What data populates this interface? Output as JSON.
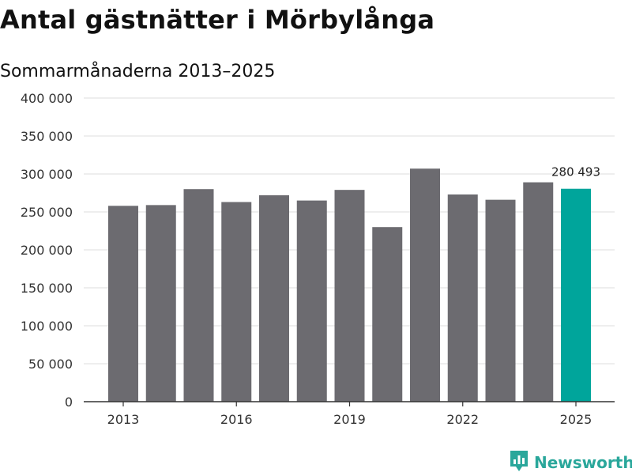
{
  "header": {
    "title": "Antal gästnätter i Mörbylånga",
    "subtitle": "Sommarmånaderna 2013–2025"
  },
  "brand": {
    "name": "Newsworthy",
    "color": "#2aa79b",
    "icon": "newsworthy-logo-icon"
  },
  "colors": {
    "bar": "#6c6b70",
    "highlight": "#00a59b",
    "grid": "#dddddd",
    "axis": "#333333"
  },
  "chart_data": {
    "type": "bar",
    "title": "Antal gästnätter i Mörbylånga",
    "subtitle": "Sommarmånaderna 2013–2025",
    "categories": [
      "2013",
      "2014",
      "2015",
      "2016",
      "2017",
      "2018",
      "2019",
      "2020",
      "2021",
      "2022",
      "2023",
      "2024",
      "2025"
    ],
    "values": [
      258000,
      259000,
      280000,
      263000,
      272000,
      265000,
      279000,
      230000,
      307000,
      273000,
      266000,
      289000,
      280493
    ],
    "highlight_category": "2025",
    "data_labels": [
      {
        "category": "2025",
        "text": "280 493"
      }
    ],
    "x_tick_labels": [
      "2013",
      "2016",
      "2019",
      "2022",
      "2025"
    ],
    "y_ticks": [
      0,
      50000,
      100000,
      150000,
      200000,
      250000,
      300000,
      350000,
      400000
    ],
    "y_tick_labels": [
      "0",
      "50 000",
      "100 000",
      "150 000",
      "200 000",
      "250 000",
      "300 000",
      "350 000",
      "400 000"
    ],
    "ylim": [
      0,
      400000
    ],
    "xlabel": "",
    "ylabel": "",
    "grid": true,
    "legend": "none"
  }
}
